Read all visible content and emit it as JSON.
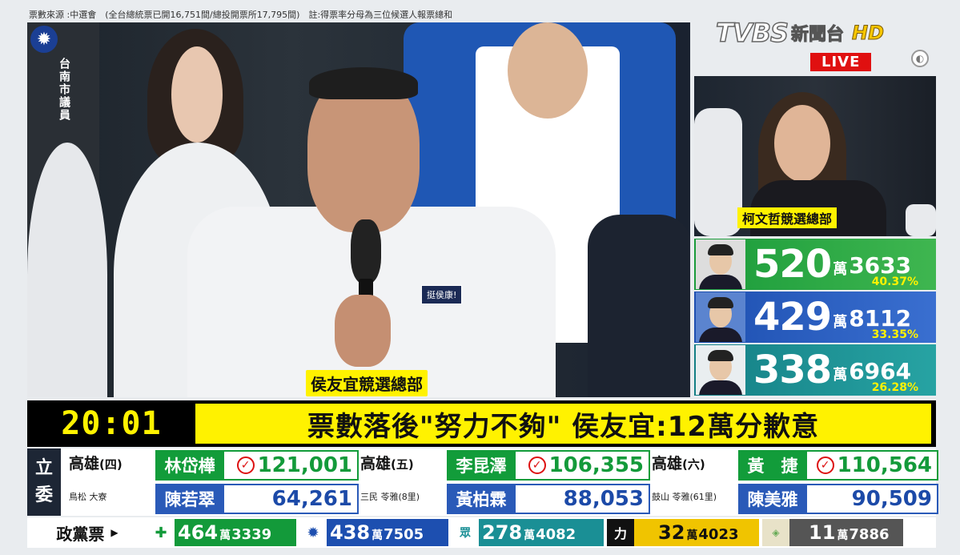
{
  "source_line": "票數來源 :中選會　(全台總統票已開16,751間/總投開票所17,795間)　註:得票率分母為三位候選人報票總和",
  "logo": {
    "brand": "TVBS",
    "channel": "新聞台",
    "hd": "HD",
    "live": "LIVE"
  },
  "main_video": {
    "subtitle": "侯友宜競選總部",
    "sign_text": "台南市議員",
    "jacket_badge": "挺侯康!"
  },
  "side_video": {
    "caption": "柯文哲競選總部"
  },
  "presidential": [
    {
      "wan": "520",
      "unit": "萬",
      "rest": "3633",
      "pct": "40.37%",
      "color": "#1a9b3a"
    },
    {
      "wan": "429",
      "unit": "萬",
      "rest": "8112",
      "pct": "33.35%",
      "color": "#1d4fb0"
    },
    {
      "wan": "338",
      "unit": "萬",
      "rest": "6964",
      "pct": "26.28%",
      "color": "#147f85"
    }
  ],
  "headline": {
    "time": "20:01",
    "text": "票數落後\"努力不夠\" 侯友宜:12萬分歉意"
  },
  "legislator": {
    "tag_top": "立",
    "tag_bottom": "委",
    "districts": [
      {
        "name": "高雄",
        "num": "(四)",
        "area": "鳥松 大寮",
        "winner": {
          "name": "林岱樺",
          "votes": "121,001"
        },
        "loser": {
          "name": "陳若翠",
          "votes": "64,261"
        }
      },
      {
        "name": "高雄",
        "num": "(五)",
        "area": "三民 苓雅(8里)",
        "winner": {
          "name": "李昆澤",
          "votes": "106,355"
        },
        "loser": {
          "name": "黃柏霖",
          "votes": "88,053"
        }
      },
      {
        "name": "高雄",
        "num": "(六)",
        "area": "鼓山 苓雅(61里)",
        "winner": {
          "name": "黃　捷",
          "votes": "110,564"
        },
        "loser": {
          "name": "陳美雅",
          "votes": "90,509"
        }
      }
    ]
  },
  "party_vote": {
    "label": "政黨票",
    "items": [
      {
        "icon": "dpp-icon",
        "wan": "464",
        "unit": "萬",
        "rest": "3339",
        "color": "#139a3a"
      },
      {
        "icon": "kmt-icon",
        "wan": "438",
        "unit": "萬",
        "rest": "7505",
        "color": "#1d4fb0"
      },
      {
        "icon": "tpp-icon",
        "wan": "278",
        "unit": "萬",
        "rest": "4082",
        "color": "#1a8f95"
      },
      {
        "icon": "npp-icon",
        "wan": "32",
        "unit": "萬",
        "rest": "4023",
        "color": "#f0c400"
      },
      {
        "icon": "tsp-icon",
        "wan": "11",
        "unit": "萬",
        "rest": "7886",
        "color": "#555555"
      }
    ]
  }
}
